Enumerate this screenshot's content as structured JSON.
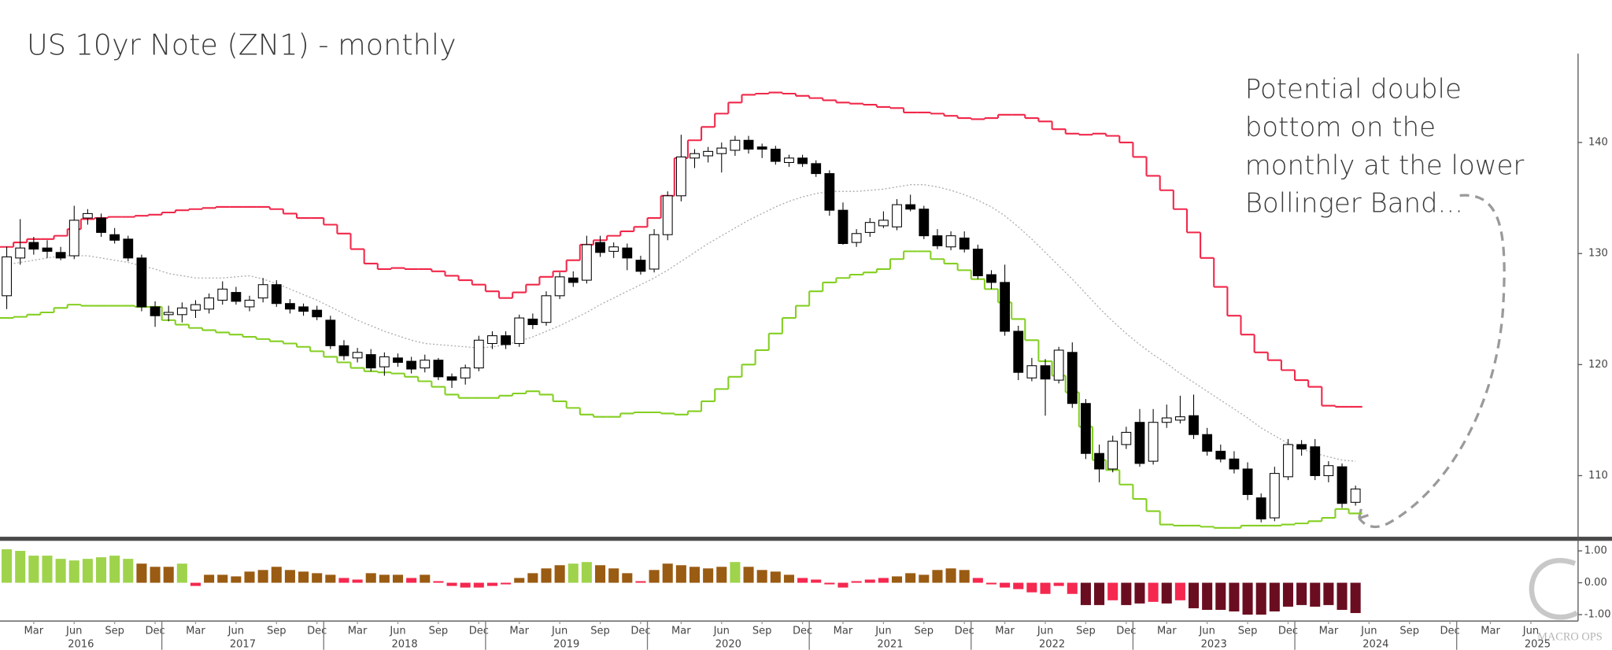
{
  "chart_data": {
    "type": "candlestick",
    "title": "US 10yr Note (ZN1) - monthly",
    "annotation": [
      "Potential double",
      "bottom on the",
      "monthly at the lower",
      "Bollinger Band..."
    ],
    "logo": "MACRO OPS",
    "x": [
      "2016-01",
      "2016-02",
      "2016-03",
      "2016-04",
      "2016-05",
      "2016-06",
      "2016-07",
      "2016-08",
      "2016-09",
      "2016-10",
      "2016-11",
      "2016-12",
      "2017-01",
      "2017-02",
      "2017-03",
      "2017-04",
      "2017-05",
      "2017-06",
      "2017-07",
      "2017-08",
      "2017-09",
      "2017-10",
      "2017-11",
      "2017-12",
      "2018-01",
      "2018-02",
      "2018-03",
      "2018-04",
      "2018-05",
      "2018-06",
      "2018-07",
      "2018-08",
      "2018-09",
      "2018-10",
      "2018-11",
      "2018-12",
      "2019-01",
      "2019-02",
      "2019-03",
      "2019-04",
      "2019-05",
      "2019-06",
      "2019-07",
      "2019-08",
      "2019-09",
      "2019-10",
      "2019-11",
      "2019-12",
      "2020-01",
      "2020-02",
      "2020-03",
      "2020-04",
      "2020-05",
      "2020-06",
      "2020-07",
      "2020-08",
      "2020-09",
      "2020-10",
      "2020-11",
      "2020-12",
      "2021-01",
      "2021-02",
      "2021-03",
      "2021-04",
      "2021-05",
      "2021-06",
      "2021-07",
      "2021-08",
      "2021-09",
      "2021-10",
      "2021-11",
      "2021-12",
      "2022-01",
      "2022-02",
      "2022-03",
      "2022-04",
      "2022-05",
      "2022-06",
      "2022-07",
      "2022-08",
      "2022-09",
      "2022-10",
      "2022-11",
      "2022-12",
      "2023-01",
      "2023-02",
      "2023-03",
      "2023-04",
      "2023-05",
      "2023-06",
      "2023-07",
      "2023-08",
      "2023-09",
      "2023-10",
      "2023-11",
      "2023-12",
      "2024-01",
      "2024-02",
      "2024-03",
      "2024-04",
      "2024-05"
    ],
    "xlim": [
      "2016-01",
      "2025-09"
    ],
    "xticks": [
      {
        "value": "2016-03",
        "label": "Mar"
      },
      {
        "value": "2016-06",
        "label": "Jun"
      },
      {
        "value": "2016-09",
        "label": "Sep"
      },
      {
        "value": "2016-12",
        "label": "Dec"
      },
      {
        "value": "2017-03",
        "label": "Mar"
      },
      {
        "value": "2017-06",
        "label": "Jun"
      },
      {
        "value": "2017-09",
        "label": "Sep"
      },
      {
        "value": "2017-12",
        "label": "Dec"
      },
      {
        "value": "2018-03",
        "label": "Mar"
      },
      {
        "value": "2018-06",
        "label": "Jun"
      },
      {
        "value": "2018-09",
        "label": "Sep"
      },
      {
        "value": "2018-12",
        "label": "Dec"
      },
      {
        "value": "2019-03",
        "label": "Mar"
      },
      {
        "value": "2019-06",
        "label": "Jun"
      },
      {
        "value": "2019-09",
        "label": "Sep"
      },
      {
        "value": "2019-12",
        "label": "Dec"
      },
      {
        "value": "2020-03",
        "label": "Mar"
      },
      {
        "value": "2020-06",
        "label": "Jun"
      },
      {
        "value": "2020-09",
        "label": "Sep"
      },
      {
        "value": "2020-12",
        "label": "Dec"
      },
      {
        "value": "2021-03",
        "label": "Mar"
      },
      {
        "value": "2021-06",
        "label": "Jun"
      },
      {
        "value": "2021-09",
        "label": "Sep"
      },
      {
        "value": "2021-12",
        "label": "Dec"
      },
      {
        "value": "2022-03",
        "label": "Mar"
      },
      {
        "value": "2022-06",
        "label": "Jun"
      },
      {
        "value": "2022-09",
        "label": "Sep"
      },
      {
        "value": "2022-12",
        "label": "Dec"
      },
      {
        "value": "2023-03",
        "label": "Mar"
      },
      {
        "value": "2023-06",
        "label": "Jun"
      },
      {
        "value": "2023-09",
        "label": "Sep"
      },
      {
        "value": "2023-12",
        "label": "Dec"
      },
      {
        "value": "2024-03",
        "label": "Mar"
      },
      {
        "value": "2024-06",
        "label": "Jun"
      },
      {
        "value": "2024-09",
        "label": "Sep"
      },
      {
        "value": "2024-12",
        "label": "Dec"
      },
      {
        "value": "2025-03",
        "label": "Mar"
      },
      {
        "value": "2025-06",
        "label": "Jun"
      }
    ],
    "year_labels": [
      "2016",
      "2017",
      "2018",
      "2019",
      "2020",
      "2021",
      "2022",
      "2023",
      "2024",
      "2025"
    ],
    "ylim": [
      104.5,
      148
    ],
    "yticks": [
      110,
      120,
      130,
      140
    ],
    "up_color": "#ffffff",
    "down_color": "#000000",
    "open": [
      126.2,
      129.6,
      131.0,
      130.5,
      130.1,
      129.8,
      133.2,
      133.2,
      131.7,
      131.3,
      129.6,
      125.2,
      124.5,
      124.5,
      124.9,
      125.0,
      125.8,
      126.5,
      125.2,
      126.0,
      127.2,
      125.5,
      125.2,
      124.9,
      124.0,
      121.7,
      120.6,
      120.9,
      119.8,
      120.6,
      120.3,
      119.7,
      120.4,
      118.9,
      118.8,
      119.7,
      121.9,
      122.6,
      121.9,
      124.1,
      123.8,
      126.2,
      127.8,
      127.6,
      131.0,
      130.2,
      130.5,
      129.4,
      128.6,
      131.7,
      135.2,
      138.6,
      138.8,
      139.0,
      139.3,
      140.2,
      139.6,
      139.4,
      138.2,
      138.6,
      138.1,
      137.2,
      133.9,
      131.0,
      131.9,
      132.5,
      132.4,
      134.4,
      134.0,
      131.6,
      130.6,
      131.4,
      130.4,
      128.1,
      127.4,
      123.0,
      118.8,
      119.9,
      118.6,
      121.1,
      116.5,
      112.0,
      110.6,
      112.8,
      114.8,
      111.3,
      114.8,
      115.0,
      115.4,
      113.7,
      112.2,
      111.5,
      110.6,
      108.0,
      106.2,
      109.9,
      112.8,
      112.6,
      110.0,
      110.8,
      107.6
    ],
    "high": [
      130.6,
      133.1,
      131.5,
      131.2,
      130.6,
      134.3,
      134.0,
      133.6,
      132.3,
      131.6,
      129.9,
      125.7,
      125.3,
      125.6,
      125.8,
      126.4,
      127.5,
      127.0,
      126.2,
      127.8,
      127.6,
      125.9,
      125.5,
      125.3,
      124.4,
      122.2,
      121.5,
      121.4,
      121.1,
      121.0,
      120.7,
      120.9,
      120.6,
      119.2,
      120.0,
      122.6,
      123.0,
      123.0,
      124.5,
      124.6,
      126.6,
      128.3,
      128.4,
      131.6,
      131.6,
      131.0,
      130.9,
      129.8,
      132.2,
      135.6,
      140.7,
      139.4,
      139.6,
      140.0,
      140.6,
      140.6,
      139.9,
      139.7,
      138.9,
      138.9,
      138.4,
      137.5,
      134.6,
      132.2,
      133.2,
      133.8,
      134.9,
      135.3,
      134.3,
      132.2,
      132.0,
      132.0,
      130.8,
      128.5,
      129.0,
      123.5,
      120.6,
      120.5,
      121.6,
      122.0,
      116.9,
      112.8,
      113.6,
      114.4,
      116.0,
      116.0,
      116.4,
      117.2,
      117.3,
      114.3,
      112.8,
      112.2,
      111.2,
      108.4,
      110.8,
      113.3,
      113.2,
      113.3,
      111.3,
      111.1,
      109.1
    ],
    "low": [
      125.0,
      129.0,
      129.9,
      129.6,
      129.4,
      129.5,
      132.6,
      131.5,
      130.9,
      129.3,
      124.8,
      123.4,
      123.9,
      123.8,
      124.2,
      124.6,
      125.4,
      125.4,
      124.8,
      125.6,
      125.2,
      124.6,
      124.4,
      124.0,
      121.4,
      120.4,
      120.2,
      119.4,
      119.0,
      119.8,
      119.2,
      119.3,
      118.6,
      117.9,
      118.2,
      119.4,
      121.4,
      121.4,
      121.6,
      123.2,
      123.5,
      125.9,
      127.0,
      127.3,
      129.7,
      129.6,
      128.5,
      128.1,
      128.3,
      131.2,
      134.7,
      137.7,
      138.2,
      137.3,
      138.8,
      139.0,
      138.6,
      138.0,
      137.8,
      137.8,
      136.9,
      133.4,
      130.8,
      130.6,
      131.5,
      132.3,
      132.1,
      133.8,
      131.3,
      130.4,
      130.3,
      130.1,
      127.7,
      126.8,
      122.6,
      118.6,
      118.5,
      115.4,
      118.3,
      116.1,
      111.5,
      109.4,
      110.3,
      112.4,
      110.8,
      111.0,
      114.3,
      114.7,
      113.3,
      111.8,
      111.2,
      110.2,
      107.8,
      105.8,
      105.9,
      109.6,
      111.8,
      109.6,
      109.4,
      107.1,
      107.3
    ],
    "close": [
      129.7,
      130.5,
      130.4,
      130.2,
      129.6,
      133.0,
      133.6,
      131.9,
      131.2,
      129.6,
      125.2,
      124.4,
      124.7,
      125.1,
      125.4,
      126.0,
      126.8,
      125.7,
      125.8,
      127.2,
      125.5,
      125.0,
      124.8,
      124.3,
      121.7,
      120.8,
      121.1,
      119.7,
      120.7,
      120.2,
      119.6,
      120.4,
      118.9,
      118.6,
      119.7,
      122.2,
      122.6,
      121.8,
      124.2,
      123.6,
      126.2,
      127.9,
      127.4,
      130.8,
      130.1,
      130.6,
      129.6,
      128.4,
      131.7,
      135.2,
      138.7,
      139.0,
      139.2,
      139.5,
      140.2,
      139.4,
      139.4,
      138.3,
      138.6,
      138.1,
      137.2,
      133.9,
      130.9,
      131.8,
      132.8,
      133.0,
      134.4,
      134.0,
      131.6,
      130.7,
      131.6,
      130.4,
      128.0,
      127.4,
      123.0,
      119.3,
      119.9,
      118.7,
      121.3,
      116.5,
      112.0,
      110.6,
      113.1,
      113.9,
      111.1,
      114.8,
      115.2,
      115.3,
      113.7,
      112.2,
      111.5,
      110.6,
      108.3,
      106.1,
      110.2,
      112.8,
      112.4,
      110.0,
      110.9,
      107.5,
      108.8
    ],
    "upper_band": {
      "color": "#f0284a",
      "values": [
        130.6,
        131.0,
        131.3,
        131.3,
        131.6,
        132.2,
        133.1,
        133.2,
        133.3,
        133.3,
        133.4,
        133.5,
        133.7,
        133.9,
        134.0,
        134.1,
        134.2,
        134.2,
        134.2,
        134.2,
        134.0,
        133.6,
        133.2,
        133.2,
        132.6,
        131.8,
        130.4,
        129.1,
        128.6,
        128.7,
        128.6,
        128.6,
        128.4,
        128.0,
        127.6,
        127.2,
        126.6,
        126.0,
        126.5,
        127.2,
        127.9,
        128.4,
        129.4,
        130.8,
        131.2,
        131.6,
        132.0,
        132.4,
        133.2,
        135.2,
        138.6,
        140.2,
        141.4,
        142.6,
        143.6,
        144.3,
        144.4,
        144.5,
        144.4,
        144.2,
        144.0,
        143.8,
        143.6,
        143.5,
        143.4,
        143.2,
        143.1,
        142.7,
        142.7,
        142.6,
        142.4,
        142.2,
        142.1,
        142.2,
        142.5,
        142.5,
        142.2,
        141.9,
        141.2,
        140.8,
        140.7,
        140.8,
        140.6,
        140.0,
        138.7,
        137.0,
        135.7,
        134.0,
        131.9,
        129.6,
        127.0,
        124.4,
        122.7,
        121.1,
        120.4,
        119.5,
        118.6,
        118.0,
        116.3,
        116.2,
        116.2
      ]
    },
    "middle_band": {
      "color": "#aaaaaa",
      "values": [
        129.0,
        129.2,
        129.4,
        129.6,
        129.8,
        129.8,
        129.8,
        129.6,
        129.4,
        129.2,
        128.9,
        128.6,
        128.2,
        128.0,
        127.8,
        127.8,
        127.8,
        127.9,
        128.0,
        127.7,
        127.3,
        126.8,
        126.3,
        125.8,
        125.2,
        124.6,
        124.0,
        123.5,
        123.0,
        122.6,
        122.2,
        121.9,
        121.8,
        121.7,
        121.6,
        121.5,
        121.6,
        121.8,
        122.1,
        122.5,
        123.0,
        123.5,
        124.1,
        124.7,
        125.4,
        126.0,
        126.6,
        127.2,
        127.8,
        128.5,
        129.3,
        130.1,
        130.9,
        131.6,
        132.3,
        133.0,
        133.6,
        134.2,
        134.7,
        135.1,
        135.4,
        135.6,
        135.6,
        135.6,
        135.7,
        135.8,
        136.0,
        136.2,
        136.2,
        136.0,
        135.7,
        135.3,
        134.8,
        134.2,
        133.4,
        132.4,
        131.3,
        130.1,
        128.9,
        127.7,
        126.4,
        125.1,
        123.9,
        122.8,
        121.8,
        120.9,
        120.1,
        119.2,
        118.4,
        117.6,
        116.8,
        116.0,
        115.2,
        114.3,
        113.6,
        112.9,
        112.4,
        112.0,
        111.7,
        111.4,
        111.3
      ]
    },
    "lower_band": {
      "color": "#84cf22",
      "values": [
        124.2,
        124.3,
        124.5,
        124.7,
        125.1,
        125.4,
        125.3,
        125.3,
        125.3,
        125.3,
        125.2,
        125.2,
        124.0,
        123.6,
        123.3,
        123.1,
        122.9,
        122.7,
        122.5,
        122.3,
        122.1,
        121.9,
        121.6,
        121.2,
        120.7,
        120.2,
        119.7,
        119.4,
        119.3,
        119.2,
        118.9,
        118.5,
        118.0,
        117.3,
        117.0,
        117.0,
        117.0,
        117.2,
        117.4,
        117.6,
        117.3,
        116.7,
        116.1,
        115.5,
        115.3,
        115.3,
        115.6,
        115.7,
        115.7,
        115.6,
        115.5,
        115.8,
        116.7,
        117.8,
        118.9,
        120.0,
        121.3,
        122.8,
        124.2,
        125.3,
        126.6,
        127.4,
        127.8,
        128.1,
        128.3,
        128.6,
        129.5,
        130.2,
        130.2,
        129.5,
        129.1,
        128.5,
        127.7,
        126.8,
        125.6,
        124.1,
        122.2,
        120.3,
        119.0,
        117.5,
        114.4,
        111.4,
        110.5,
        109.2,
        107.9,
        106.8,
        105.6,
        105.5,
        105.5,
        105.4,
        105.3,
        105.3,
        105.5,
        105.5,
        105.5,
        105.6,
        105.7,
        105.9,
        106.2,
        107.0,
        106.6
      ]
    },
    "oscillator": {
      "type": "bar",
      "ylim": [
        -1.2,
        1.25
      ],
      "yticks": [
        {
          "value": 1,
          "label": "1.00"
        },
        {
          "value": 0,
          "label": "0.00"
        },
        {
          "value": -1,
          "label": "-1.00"
        }
      ],
      "values": [
        1.05,
        1.0,
        0.85,
        0.85,
        0.75,
        0.7,
        0.75,
        0.8,
        0.85,
        0.75,
        0.6,
        0.5,
        0.5,
        0.6,
        -0.1,
        0.25,
        0.25,
        0.2,
        0.35,
        0.4,
        0.5,
        0.4,
        0.35,
        0.3,
        0.25,
        0.15,
        0.1,
        0.3,
        0.25,
        0.25,
        0.15,
        0.25,
        0.05,
        -0.1,
        -0.15,
        -0.15,
        -0.1,
        -0.05,
        0.15,
        0.3,
        0.45,
        0.55,
        0.6,
        0.65,
        0.55,
        0.45,
        0.3,
        0.05,
        0.4,
        0.6,
        0.55,
        0.5,
        0.45,
        0.5,
        0.65,
        0.5,
        0.4,
        0.35,
        0.25,
        0.15,
        0.1,
        -0.05,
        -0.15,
        0.05,
        0.1,
        0.15,
        0.2,
        0.3,
        0.25,
        0.4,
        0.45,
        0.4,
        0.15,
        -0.05,
        -0.15,
        -0.2,
        -0.3,
        -0.35,
        -0.1,
        -0.35,
        -0.7,
        -0.7,
        -0.55,
        -0.7,
        -0.65,
        -0.6,
        -0.65,
        -0.55,
        -0.8,
        -0.85,
        -0.85,
        -0.9,
        -1.0,
        -1.0,
        -0.9,
        -0.75,
        -0.7,
        -0.75,
        -0.7,
        -0.85,
        -0.95
      ],
      "colors": [
        "#9fd34c",
        "#9fd34c",
        "#9fd34c",
        "#9fd34c",
        "#9fd34c",
        "#9fd34c",
        "#9fd34c",
        "#9fd34c",
        "#9fd34c",
        "#9fd34c",
        "#9a5b12",
        "#9a5b12",
        "#9a5b12",
        "#9fd34c",
        "#f5284f",
        "#9a5b12",
        "#9a5b12",
        "#9a5b12",
        "#9a5b12",
        "#9a5b12",
        "#9a5b12",
        "#9a5b12",
        "#9a5b12",
        "#9a5b12",
        "#9a5b12",
        "#f5284f",
        "#f5284f",
        "#9a5b12",
        "#9a5b12",
        "#9a5b12",
        "#f5284f",
        "#9a5b12",
        "#f5284f",
        "#f5284f",
        "#f5284f",
        "#f5284f",
        "#f5284f",
        "#f5284f",
        "#9a5b12",
        "#9a5b12",
        "#9a5b12",
        "#9a5b12",
        "#9fd34c",
        "#9fd34c",
        "#9a5b12",
        "#9a5b12",
        "#9a5b12",
        "#f5284f",
        "#9a5b12",
        "#9a5b12",
        "#9a5b12",
        "#9a5b12",
        "#9a5b12",
        "#9a5b12",
        "#9fd34c",
        "#9a5b12",
        "#9a5b12",
        "#9a5b12",
        "#9a5b12",
        "#f5284f",
        "#f5284f",
        "#f5284f",
        "#f5284f",
        "#f5284f",
        "#f5284f",
        "#f5284f",
        "#9a5b12",
        "#9a5b12",
        "#9a5b12",
        "#9a5b12",
        "#9a5b12",
        "#9a5b12",
        "#f5284f",
        "#f5284f",
        "#f5284f",
        "#f5284f",
        "#f5284f",
        "#f5284f",
        "#f5284f",
        "#f5284f",
        "#6b0d20",
        "#6b0d20",
        "#f5284f",
        "#6b0d20",
        "#6b0d20",
        "#f5284f",
        "#6b0d20",
        "#f5284f",
        "#6b0d20",
        "#6b0d20",
        "#6b0d20",
        "#6b0d20",
        "#6b0d20",
        "#6b0d20",
        "#6b0d20",
        "#6b0d20",
        "#6b0d20",
        "#6b0d20",
        "#6b0d20",
        "#6b0d20",
        "#6b0d20"
      ]
    }
  }
}
